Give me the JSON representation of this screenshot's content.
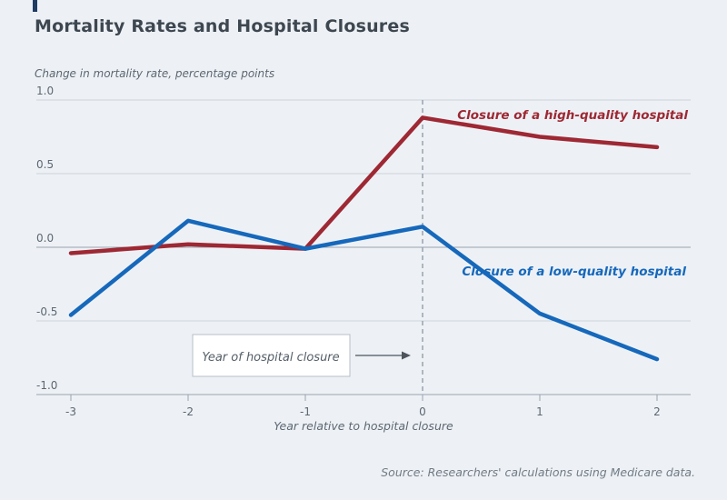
{
  "page": {
    "title": "Mortality Rates and Hospital Closures",
    "source_note": "Source: Researchers' calculations using Medicare data."
  },
  "chart_data": {
    "type": "line",
    "title": "Mortality Rates and Hospital Closures",
    "ylabel": "Change in mortality rate, percentage points",
    "xlabel": "Year relative to hospital closure",
    "x": [
      -3,
      -2,
      -1,
      0,
      1,
      2
    ],
    "x_tick_labels": [
      "-3",
      "-2",
      "-1",
      "0",
      "1",
      "2"
    ],
    "y_ticks": [
      1.0,
      0.5,
      0.0,
      -0.5,
      -1.0
    ],
    "y_tick_labels": [
      "1.0",
      "0.5",
      "0.0",
      "-0.5",
      "-1.0"
    ],
    "xlim": [
      -3,
      2
    ],
    "ylim": [
      -1.0,
      1.0
    ],
    "grid": true,
    "legend_position": "inline-labels",
    "series": [
      {
        "name": "Closure of a high-quality hospital",
        "color": "#9e2833",
        "values": [
          -0.04,
          0.02,
          -0.01,
          0.88,
          0.75,
          0.68
        ]
      },
      {
        "name": "Closure of a low-quality hospital",
        "color": "#1668bb",
        "values": [
          -0.46,
          0.18,
          -0.01,
          0.14,
          -0.45,
          -0.76
        ]
      }
    ],
    "annotations": [
      {
        "type": "box-with-arrow",
        "text": "Year of hospital closure",
        "points_to_x": 0
      },
      {
        "type": "dashed-vline",
        "x": 0
      }
    ]
  },
  "colors": {
    "background": "#edf1f6",
    "gridline": "#cbd2d9",
    "zero_and_axis_line": "#9aa3ac",
    "dashed_line": "#9aa3ac",
    "high_quality_line": "#9e2833",
    "low_quality_line": "#1668bb",
    "accent_mark": "#1f3a63"
  }
}
